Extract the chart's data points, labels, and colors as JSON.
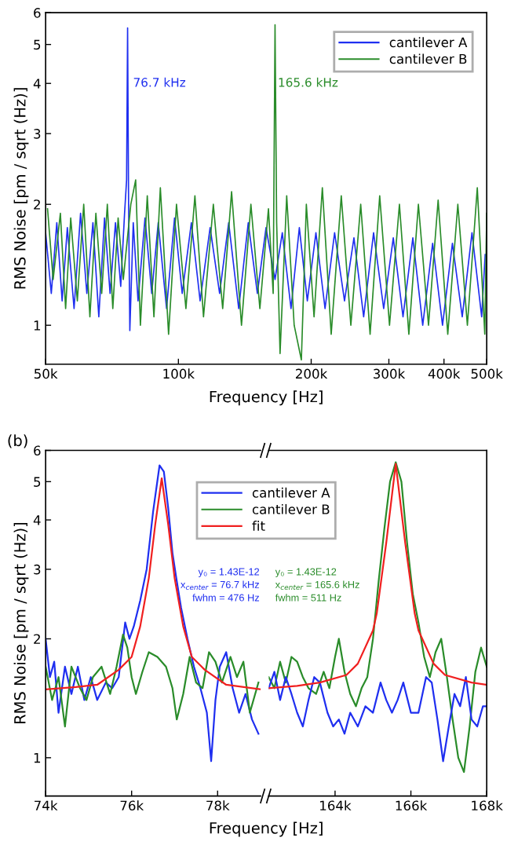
{
  "chart_data": [
    {
      "type": "line",
      "xlabel": "Frequency [Hz]",
      "ylabel": "RMS Noise [pm / sqrt (Hz)]",
      "log": "xy",
      "legend": "top right",
      "xlim": [
        50000,
        500000
      ],
      "xticks": [
        {
          "value": 50000,
          "label": "50k"
        },
        {
          "value": 100000,
          "label": "100k"
        },
        {
          "value": 200000,
          "label": "200k"
        },
        {
          "value": 300000,
          "label": "300k"
        },
        {
          "value": 400000,
          "label": "400k"
        },
        {
          "value": 500000,
          "label": "500k"
        }
      ],
      "ylim": [
        0.8,
        6
      ],
      "yticks": [
        1,
        2,
        3,
        4,
        5,
        6
      ],
      "annotations": [
        {
          "text": "76.7 kHz",
          "x": 78900,
          "y": 4
        },
        {
          "text": "165.6 kHz",
          "x": 168000,
          "y": 4
        }
      ],
      "series": [
        {
          "name": "cantilever A",
          "color": "#1f2ff0",
          "x": [
            50000,
            51500,
            53000,
            54500,
            56000,
            58000,
            60000,
            62000,
            64000,
            66000,
            68000,
            70000,
            72000,
            74000,
            75500,
            76300,
            76700,
            77100,
            77600,
            79000,
            81000,
            84000,
            87000,
            90000,
            94000,
            98000,
            102000,
            107000,
            112000,
            118000,
            124000,
            130000,
            137000,
            144000,
            151000,
            158000,
            165600,
            172000,
            180000,
            188000,
            196000,
            205000,
            215000,
            226000,
            238000,
            250000,
            263000,
            277000,
            292000,
            307000,
            323000,
            340000,
            358000,
            377000,
            397000,
            418000,
            440000,
            463000,
            487000,
            496000
          ],
          "values": [
            1.7,
            1.2,
            1.8,
            1.15,
            1.75,
            1.1,
            1.9,
            1.2,
            1.8,
            1.05,
            1.85,
            1.2,
            1.8,
            1.25,
            1.9,
            2.3,
            5.5,
            2.0,
            0.97,
            1.8,
            1.15,
            1.85,
            1.2,
            1.8,
            1.1,
            1.85,
            1.2,
            1.8,
            1.15,
            1.75,
            1.2,
            1.8,
            1.1,
            1.8,
            1.2,
            1.75,
            1.3,
            1.7,
            1.1,
            1.75,
            1.15,
            1.7,
            1.1,
            1.7,
            1.15,
            1.65,
            1.05,
            1.7,
            1.1,
            1.65,
            1.05,
            1.65,
            1.0,
            1.6,
            1.0,
            1.6,
            1.05,
            1.7,
            1.05,
            1.5
          ]
        },
        {
          "name": "cantilever B",
          "color": "#2a8c2a",
          "x": [
            50500,
            52000,
            54000,
            55500,
            57000,
            59000,
            61000,
            63000,
            65000,
            67000,
            69000,
            71000,
            73000,
            75000,
            78000,
            80000,
            82000,
            85000,
            88000,
            91000,
            95000,
            99000,
            104000,
            109000,
            114000,
            120000,
            126000,
            132000,
            139000,
            146000,
            153000,
            160000,
            164000,
            165600,
            167000,
            170000,
            176000,
            183000,
            190000,
            195000,
            203000,
            212000,
            222000,
            234000,
            246000,
            259000,
            272000,
            286000,
            301000,
            317000,
            333000,
            350000,
            369000,
            388000,
            408000,
            430000,
            452000,
            476000,
            495000,
            500000
          ],
          "values": [
            1.95,
            1.3,
            1.9,
            1.1,
            1.85,
            1.15,
            2.0,
            1.05,
            1.9,
            1.2,
            2.0,
            1.1,
            1.85,
            1.3,
            2.0,
            2.3,
            1.0,
            2.1,
            1.05,
            2.2,
            0.95,
            2.0,
            1.1,
            2.1,
            1.05,
            2.0,
            1.1,
            2.15,
            1.0,
            2.0,
            1.1,
            1.95,
            1.2,
            5.6,
            1.8,
            0.85,
            2.1,
            1.0,
            0.82,
            2.0,
            1.05,
            2.2,
            0.95,
            2.1,
            1.0,
            2.0,
            0.95,
            2.1,
            1.0,
            2.0,
            0.95,
            2.0,
            1.0,
            2.05,
            0.95,
            2.0,
            1.0,
            2.2,
            0.95,
            1.9
          ]
        }
      ]
    },
    {
      "type": "line",
      "title": "(b)",
      "xlabel": "Frequency [Hz]",
      "ylabel": "RMS Noise [pm / sqrt (Hz)]",
      "log": "y",
      "legend": "top",
      "xlim": [
        74000,
        79000
      ],
      "xticks": [
        {
          "value": 74000,
          "label": "74k"
        },
        {
          "value": 76000,
          "label": "76k"
        },
        {
          "value": 78000,
          "label": "78k"
        }
      ],
      "ylim": [
        0.8,
        6
      ],
      "yticks": [
        1,
        2,
        3,
        4,
        5,
        6
      ],
      "annotations": [
        "y₀ = 1.43E-12\nx$_{center}$ = 76.7 kHz\nfwhm = 476 Hz"
      ],
      "series": [
        {
          "name": "cantilever A",
          "color": "#1f2ff0",
          "x": [
            74000,
            74100,
            74200,
            74300,
            74450,
            74600,
            74750,
            74900,
            75050,
            75200,
            75400,
            75550,
            75700,
            75850,
            75950,
            76050,
            76200,
            76350,
            76500,
            76650,
            76750,
            76850,
            76950,
            77050,
            77150,
            77300,
            77450,
            77600,
            77750,
            77850,
            77950,
            78050,
            78200,
            78350,
            78500,
            78650,
            78800,
            78950
          ],
          "values": [
            2.0,
            1.6,
            1.75,
            1.3,
            1.7,
            1.45,
            1.7,
            1.4,
            1.6,
            1.4,
            1.55,
            1.5,
            1.6,
            2.2,
            2.0,
            2.15,
            2.5,
            3.0,
            4.2,
            5.5,
            5.3,
            4.3,
            3.3,
            2.8,
            2.4,
            2.0,
            1.7,
            1.5,
            1.3,
            0.98,
            1.4,
            1.7,
            1.85,
            1.5,
            1.3,
            1.45,
            1.25,
            1.15
          ]
        },
        {
          "name": "cantilever B",
          "color": "#2a8c2a",
          "x": [
            74000,
            74150,
            74300,
            74450,
            74600,
            74800,
            74950,
            75100,
            75300,
            75500,
            75650,
            75800,
            75900,
            76000,
            76100,
            76250,
            76400,
            76600,
            76800,
            76950,
            77050,
            77200,
            77350,
            77500,
            77650,
            77800,
            77950,
            78100,
            78300,
            78450,
            78600,
            78750,
            78950
          ],
          "values": [
            1.7,
            1.4,
            1.6,
            1.2,
            1.7,
            1.5,
            1.4,
            1.6,
            1.7,
            1.45,
            1.7,
            2.05,
            1.9,
            1.6,
            1.45,
            1.65,
            1.85,
            1.8,
            1.7,
            1.5,
            1.25,
            1.45,
            1.8,
            1.55,
            1.5,
            1.85,
            1.75,
            1.55,
            1.8,
            1.6,
            1.75,
            1.3,
            1.55
          ]
        },
        {
          "name": "fit",
          "color": "#f02020",
          "x": [
            74000,
            74700,
            75200,
            75700,
            76000,
            76200,
            76400,
            76550,
            76700,
            76850,
            77000,
            77200,
            77400,
            77700,
            78200,
            79000
          ],
          "values": [
            1.49,
            1.51,
            1.53,
            1.67,
            1.8,
            2.15,
            2.85,
            3.9,
            5.1,
            3.9,
            2.85,
            2.15,
            1.8,
            1.67,
            1.53,
            1.49
          ]
        }
      ]
    },
    {
      "type": "line",
      "log": "y",
      "tick_labels": "x",
      "xlim": [
        162250,
        168000
      ],
      "xticks": [
        {
          "value": 164000,
          "label": "164k"
        },
        {
          "value": 166000,
          "label": "166k"
        },
        {
          "value": 168000,
          "label": "168k"
        }
      ],
      "ylim": [
        0.8,
        6
      ],
      "yticks": [
        1,
        2,
        3,
        4,
        5,
        6
      ],
      "annotations": [
        "y₀ = 1.43E-12\nx$_{center}$ = 165.6 kHz\nfwhm = 511 Hz"
      ],
      "series": [
        {
          "color": "#2a8c2a",
          "x": [
            162250,
            162400,
            162550,
            162700,
            162850,
            163000,
            163150,
            163300,
            163500,
            163700,
            163850,
            164000,
            164100,
            164250,
            164400,
            164550,
            164700,
            164850,
            165000,
            165150,
            165300,
            165450,
            165600,
            165750,
            165900,
            166050,
            166200,
            166350,
            166500,
            166650,
            166800,
            166950,
            167100,
            167250,
            167400,
            167550,
            167700,
            167850,
            168000
          ],
          "values": [
            1.6,
            1.5,
            1.75,
            1.55,
            1.8,
            1.75,
            1.6,
            1.5,
            1.45,
            1.65,
            1.5,
            1.8,
            2.0,
            1.65,
            1.45,
            1.35,
            1.5,
            1.6,
            2.0,
            2.8,
            3.8,
            5.0,
            5.6,
            5.0,
            3.5,
            2.6,
            2.2,
            1.8,
            1.6,
            1.85,
            2.0,
            1.6,
            1.25,
            1.0,
            0.92,
            1.2,
            1.65,
            1.9,
            1.7
          ]
        },
        {
          "color": "#1f2ff0",
          "x": [
            162250,
            162400,
            162550,
            162700,
            162850,
            163000,
            163150,
            163300,
            163450,
            163600,
            163800,
            163950,
            164100,
            164250,
            164400,
            164600,
            164800,
            165000,
            165200,
            165350,
            165500,
            165650,
            165800,
            166000,
            166200,
            166400,
            166550,
            166700,
            166850,
            167000,
            167150,
            167300,
            167450,
            167600,
            167750,
            167900,
            168000
          ],
          "values": [
            1.5,
            1.65,
            1.4,
            1.6,
            1.45,
            1.3,
            1.2,
            1.4,
            1.6,
            1.55,
            1.3,
            1.2,
            1.25,
            1.15,
            1.3,
            1.2,
            1.35,
            1.3,
            1.55,
            1.4,
            1.3,
            1.4,
            1.55,
            1.3,
            1.3,
            1.6,
            1.55,
            1.25,
            0.98,
            1.2,
            1.45,
            1.35,
            1.6,
            1.25,
            1.2,
            1.35,
            1.35
          ]
        },
        {
          "color": "#f02020",
          "x": [
            162250,
            163000,
            163600,
            164300,
            164600,
            165000,
            165100,
            165350,
            165600,
            165850,
            166100,
            166200,
            166600,
            166900,
            167600,
            168000
          ],
          "values": [
            1.5,
            1.52,
            1.55,
            1.62,
            1.73,
            2.1,
            2.32,
            3.5,
            5.55,
            3.5,
            2.32,
            2.1,
            1.73,
            1.62,
            1.55,
            1.53
          ]
        }
      ]
    }
  ]
}
